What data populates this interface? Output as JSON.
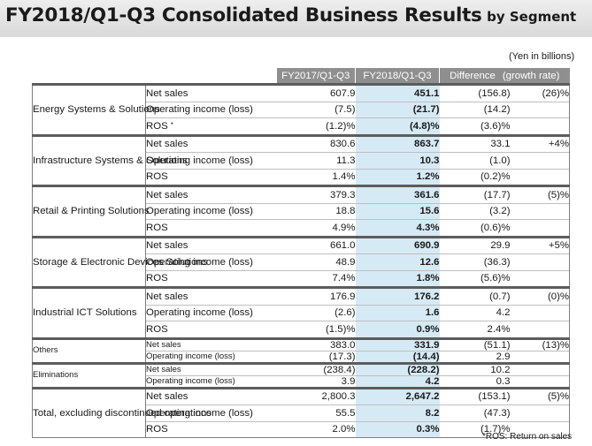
{
  "title": {
    "main": "FY2018/Q1-Q3 Consolidated Business Results",
    "sub": "by Segment"
  },
  "unit": "(Yen in billions)",
  "columns": {
    "prev": "FY2017/Q1-Q3",
    "cur": "FY2018/Q1-Q3",
    "diff": "Difference",
    "growth": "(growth rate)"
  },
  "footnote": "*ROS: Return on sales",
  "segments": [
    {
      "name": "Energy Systems & Solutions",
      "rows": [
        {
          "item": "Net sales",
          "prev": "607.9",
          "cur": "451.1",
          "diff": "(156.8)",
          "growth": "(26)%"
        },
        {
          "item": "Operating income (loss)",
          "prev": "(7.5)",
          "cur": "(21.7)",
          "diff": "(14.2)",
          "growth": ""
        },
        {
          "item": "ROS",
          "mark": "*",
          "prev": "(1.2)%",
          "cur": "(4.8)%",
          "diff": "(3.6)%",
          "growth": ""
        }
      ]
    },
    {
      "name": "Infrastructure Systems & Solutions",
      "rows": [
        {
          "item": "Net sales",
          "prev": "830.6",
          "cur": "863.7",
          "diff": "33.1",
          "growth": "+4%"
        },
        {
          "item": "Operating income (loss)",
          "prev": "11.3",
          "cur": "10.3",
          "diff": "(1.0)",
          "growth": ""
        },
        {
          "item": "ROS",
          "prev": "1.4%",
          "cur": "1.2%",
          "diff": "(0.2)%",
          "growth": ""
        }
      ]
    },
    {
      "name": "Retail & Printing Solutions",
      "rows": [
        {
          "item": "Net sales",
          "prev": "379.3",
          "cur": "361.6",
          "diff": "(17.7)",
          "growth": "(5)%"
        },
        {
          "item": "Operating income (loss)",
          "prev": "18.8",
          "cur": "15.6",
          "diff": "(3.2)",
          "growth": ""
        },
        {
          "item": "ROS",
          "prev": "4.9%",
          "cur": "4.3%",
          "diff": "(0.6)%",
          "growth": ""
        }
      ]
    },
    {
      "name": "Storage & Electronic Devices Solutions",
      "rows": [
        {
          "item": "Net sales",
          "prev": "661.0",
          "cur": "690.9",
          "diff": "29.9",
          "growth": "+5%"
        },
        {
          "item": "Operating income (loss)",
          "prev": "48.9",
          "cur": "12.6",
          "diff": "(36.3)",
          "growth": ""
        },
        {
          "item": "ROS",
          "prev": "7.4%",
          "cur": "1.8%",
          "diff": "(5.6)%",
          "growth": ""
        }
      ]
    },
    {
      "name": "Industrial ICT Solutions",
      "rows": [
        {
          "item": "Net sales",
          "prev": "176.9",
          "cur": "176.2",
          "diff": "(0.7)",
          "growth": "(0)%"
        },
        {
          "item": "Operating income (loss)",
          "prev": "(2.6)",
          "cur": "1.6",
          "diff": "4.2",
          "growth": ""
        },
        {
          "item": "ROS",
          "prev": "(1.5)%",
          "cur": "0.9%",
          "diff": "2.4%",
          "growth": ""
        }
      ]
    },
    {
      "name": "Others",
      "small": true,
      "rows": [
        {
          "item": "Net sales",
          "prev": "383.0",
          "cur": "331.9",
          "diff": "(51.1)",
          "growth": "(13)%"
        },
        {
          "item": "Operating income (loss)",
          "prev": "(17.3)",
          "cur": "(14.4)",
          "diff": "2.9",
          "growth": ""
        }
      ]
    },
    {
      "name": "Eliminations",
      "small": true,
      "rows": [
        {
          "item": "Net sales",
          "prev": "(238.4)",
          "cur": "(228.2)",
          "diff": "10.2",
          "growth": ""
        },
        {
          "item": "Operating income (loss)",
          "prev": "3.9",
          "cur": "4.2",
          "diff": "0.3",
          "growth": ""
        }
      ]
    },
    {
      "name": "Total, excluding discontinued operations",
      "rows": [
        {
          "item": "Net sales",
          "prev": "2,800.3",
          "cur": "2,647.2",
          "diff": "(153.1)",
          "growth": "(5)%"
        },
        {
          "item": "Operating income (loss)",
          "prev": "55.5",
          "cur": "8.2",
          "diff": "(47.3)",
          "growth": ""
        },
        {
          "item": "ROS",
          "prev": "2.0%",
          "cur": "0.3%",
          "diff": "(1.7)%",
          "growth": ""
        }
      ]
    }
  ]
}
